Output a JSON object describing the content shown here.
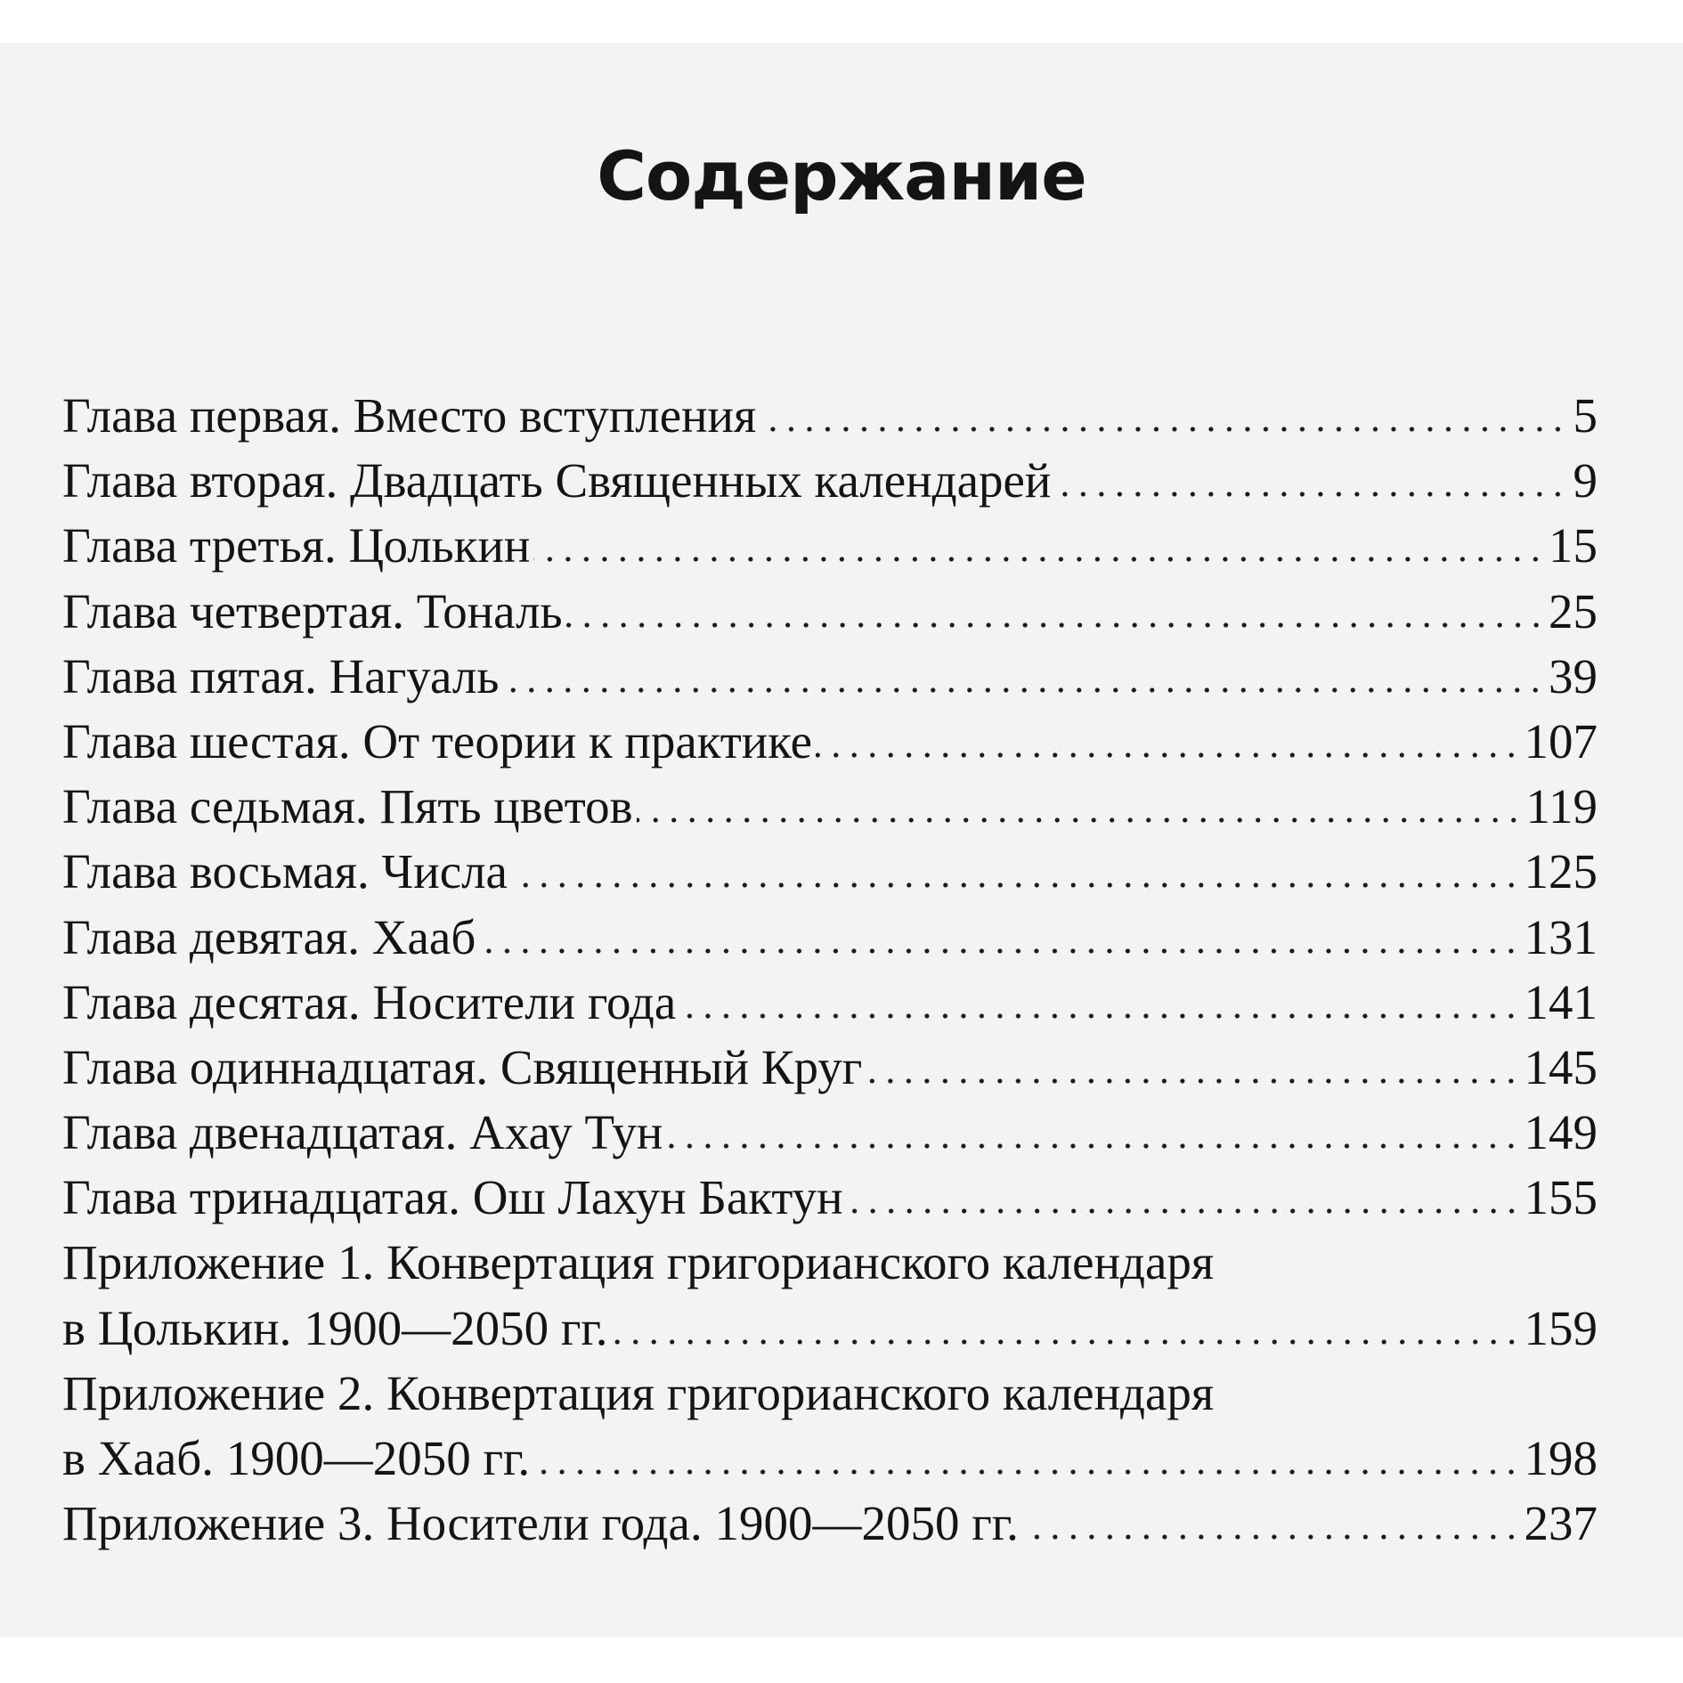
{
  "title": "Содержание",
  "entries": [
    {
      "text": "Глава первая. Вместо вступления",
      "page": "5"
    },
    {
      "text": "Глава вторая. Двадцать Священных календарей",
      "page": "9"
    },
    {
      "text": "Глава третья. Цолькин",
      "page": "15"
    },
    {
      "text": "Глава четвертая. Тональ",
      "page": "25"
    },
    {
      "text": "Глава пятая. Нагуаль",
      "page": "39"
    },
    {
      "text": "Глава шестая. От теории к практике",
      "page": "107"
    },
    {
      "text": "Глава седьмая. Пять цветов",
      "page": "119"
    },
    {
      "text": "Глава восьмая. Числа",
      "page": "125"
    },
    {
      "text": "Глава девятая. Хааб",
      "page": "131"
    },
    {
      "text": "Глава десятая. Носители года",
      "page": "141"
    },
    {
      "text": "Глава одиннадцатая. Священный Круг",
      "page": "145"
    },
    {
      "text": "Глава двенадцатая. Ахау Тун",
      "page": "149"
    },
    {
      "text": "Глава тринадцатая. Ош Лахун Бактун",
      "page": "155"
    },
    {
      "text": "Приложение 1. Конвертация григорианского календаря",
      "text2": "в Цолькин. 1900—2050 гг.",
      "page": "159"
    },
    {
      "text": "Приложение 2. Конвертация григорианского календаря",
      "text2": "в Хааб. 1900—2050 гг.",
      "page": "198"
    },
    {
      "text": "Приложение 3. Носители года. 1900—2050 гг.",
      "page": "237"
    }
  ]
}
